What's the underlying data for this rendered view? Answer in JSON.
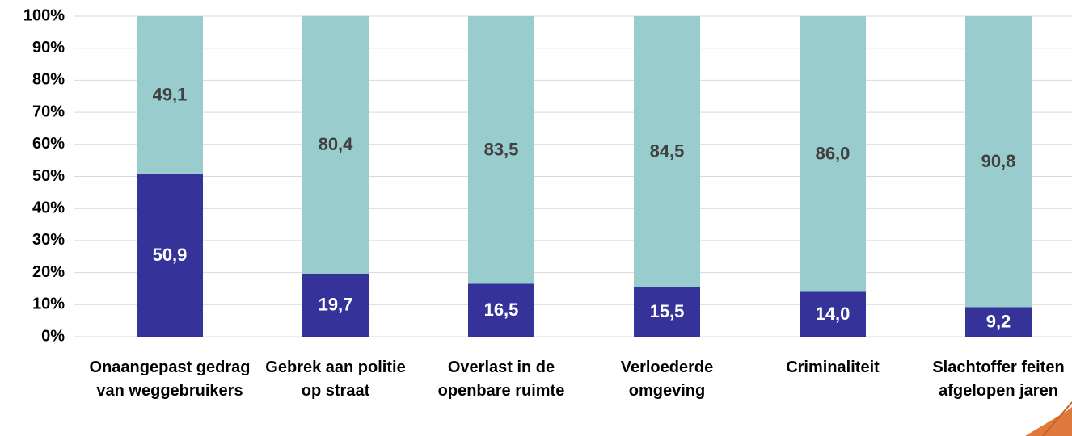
{
  "chart_data": {
    "type": "stacked_bar",
    "categories": [
      "Onaangepast gedrag van weggebruikers",
      "Gebrek aan politie op straat",
      "Overlast in de openbare ruimte",
      "Verloederde omgeving",
      "Criminaliteit",
      "Slachtoffer feiten afgelopen jaren"
    ],
    "series": [
      {
        "color": "#35339a",
        "values": [
          50.9,
          19.7,
          16.5,
          15.5,
          14.0,
          9.2
        ],
        "value_labels": [
          "50,9",
          "19,7",
          "16,5",
          "15,5",
          "14,0",
          "9,2"
        ]
      },
      {
        "color": "#99cccc",
        "values": [
          49.1,
          80.4,
          83.5,
          84.5,
          86.0,
          90.8
        ],
        "value_labels": [
          "49,1",
          "80,4",
          "83,5",
          "84,5",
          "86,0",
          "90,8"
        ]
      }
    ],
    "ylim": [
      0,
      100
    ],
    "yticks": [
      {
        "value": 0,
        "label": "0%"
      },
      {
        "value": 10,
        "label": "10%"
      },
      {
        "value": 20,
        "label": "20%"
      },
      {
        "value": 30,
        "label": "30%"
      },
      {
        "value": 40,
        "label": "40%"
      },
      {
        "value": 50,
        "label": "50%"
      },
      {
        "value": 60,
        "label": "60%"
      },
      {
        "value": 70,
        "label": "70%"
      },
      {
        "value": 80,
        "label": "80%"
      },
      {
        "value": 90,
        "label": "90%"
      },
      {
        "value": 100,
        "label": "100%"
      }
    ],
    "grid": true
  }
}
